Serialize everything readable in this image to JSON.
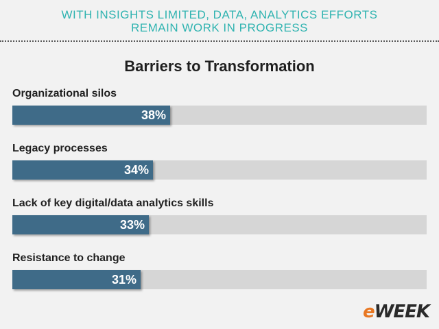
{
  "header": {
    "line1": "WITH INSIGHTS LIMITED, DATA, ANALYTICS EFFORTS",
    "line2": "REMAIN WORK IN PROGRESS"
  },
  "logo": {
    "e": "e",
    "rest": "WEEK"
  },
  "colors": {
    "headline": "#2fb3b0",
    "bar": "#3f6b88",
    "track": "#d6d6d6",
    "logo_accent": "#e87722"
  },
  "chart_data": {
    "type": "bar",
    "orientation": "horizontal",
    "title": "Barriers to Transformation",
    "categories": [
      "Organizational silos",
      "Legacy processes",
      "Lack of key digital/data analytics skills",
      "Resistance to change"
    ],
    "values": [
      38,
      34,
      33,
      31
    ],
    "value_labels": [
      "38%",
      "34%",
      "33%",
      "31%"
    ],
    "xlim": [
      0,
      100
    ],
    "unit": "%",
    "grid": false
  }
}
